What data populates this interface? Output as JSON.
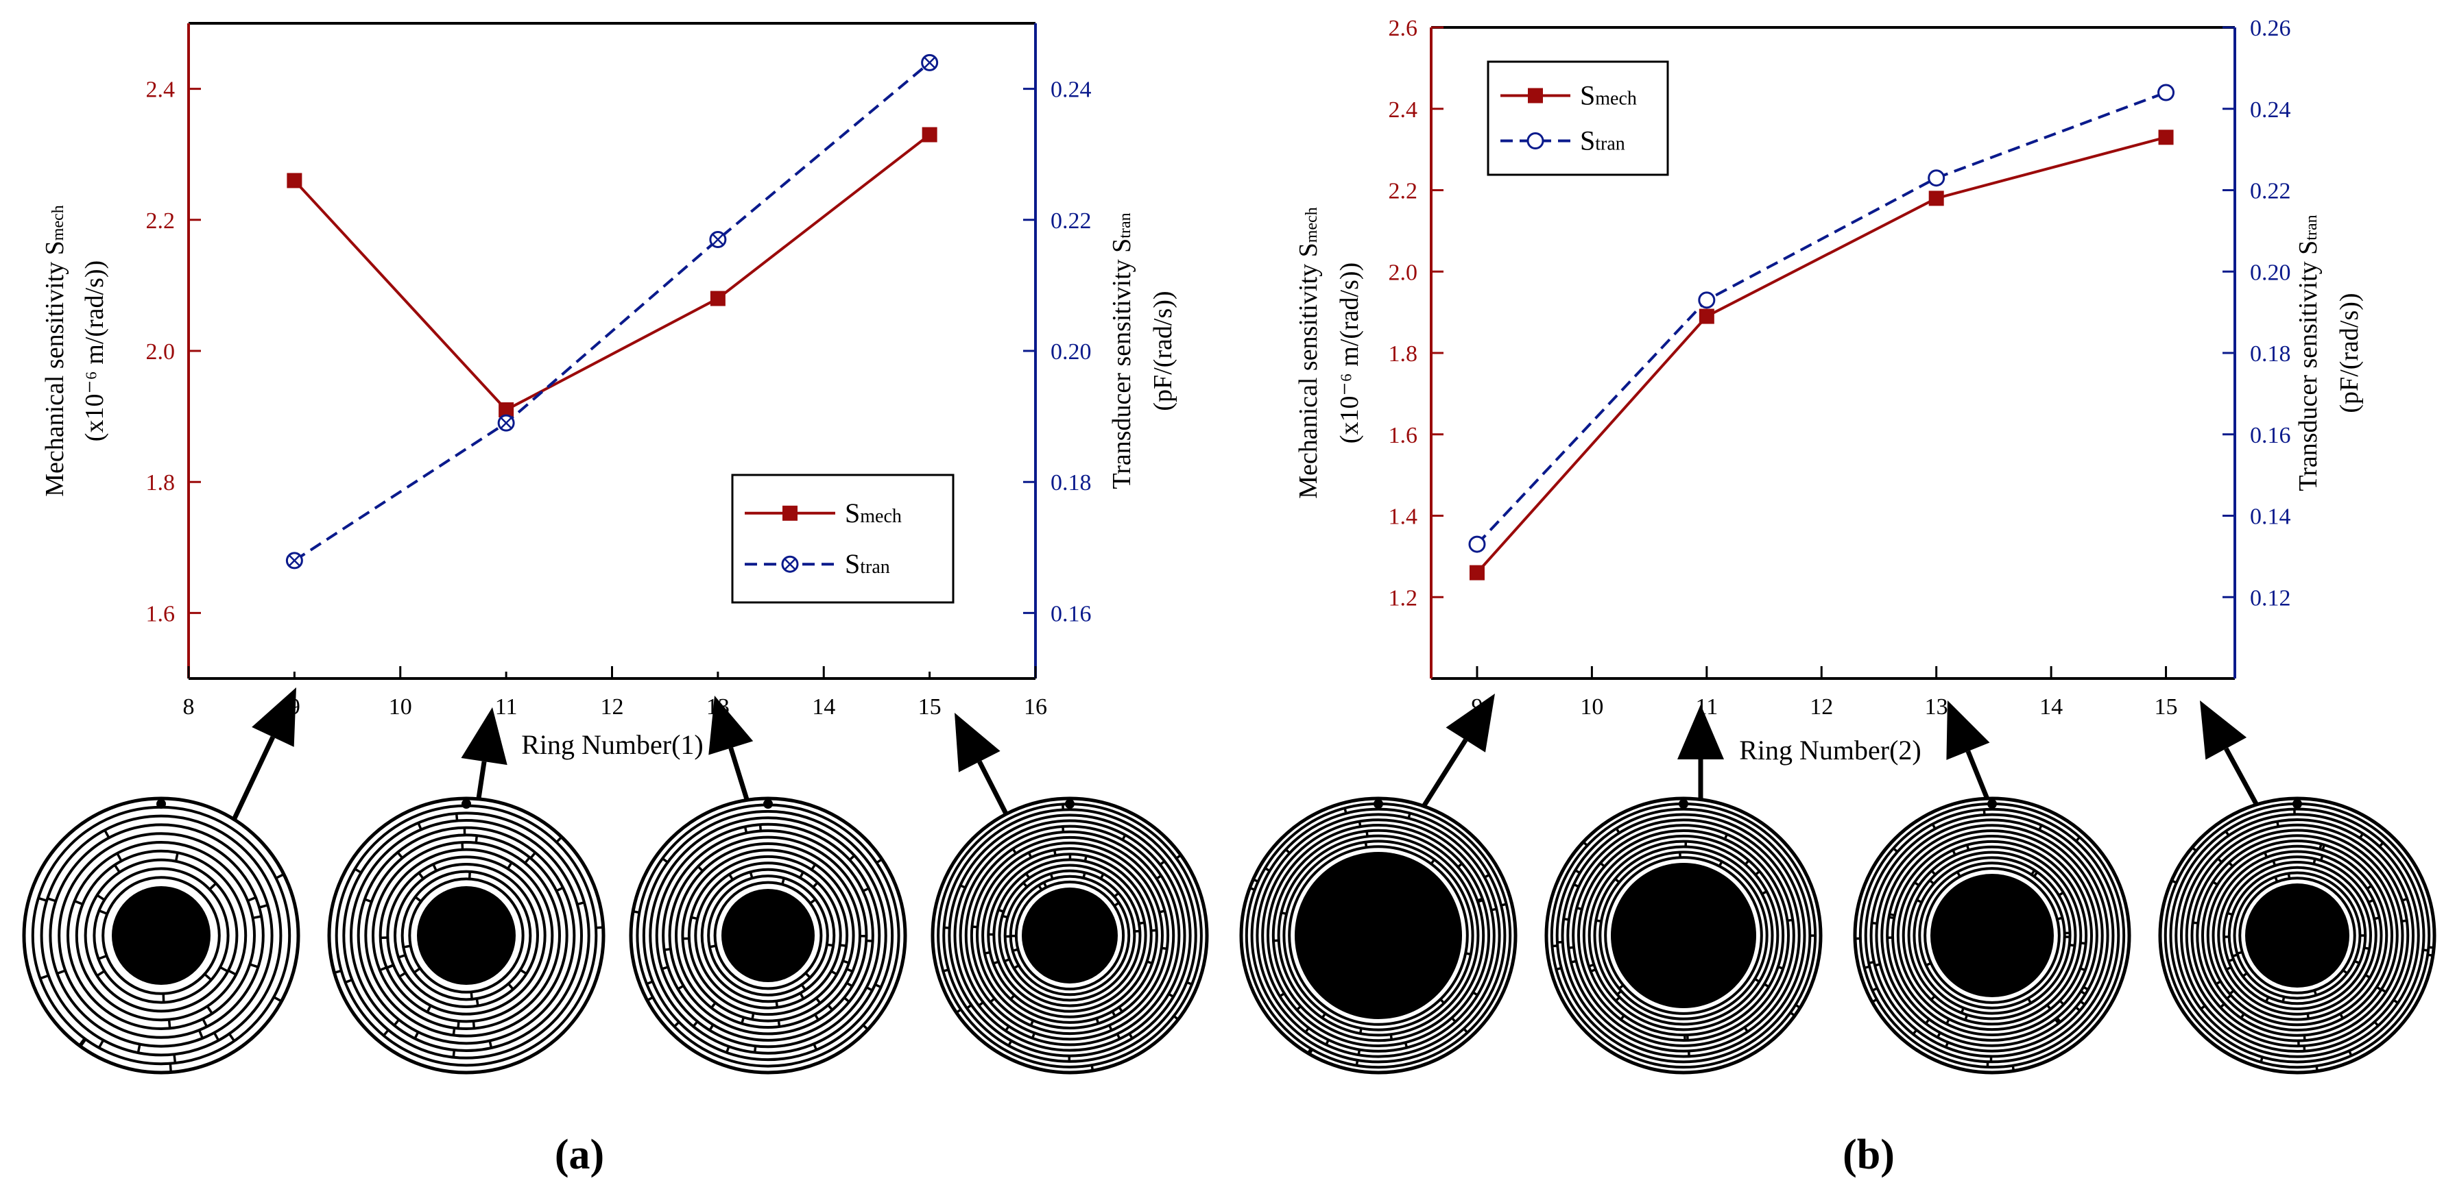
{
  "panels": [
    {
      "caption": "(a)",
      "layout_seed": 1,
      "ring_counts_shown": [
        9,
        11,
        13,
        15
      ]
    },
    {
      "caption": "(b)",
      "layout_seed": 2,
      "ring_counts_shown": [
        9,
        11,
        13,
        15
      ]
    }
  ],
  "colors": {
    "mech": "#9b0a0a",
    "tran": "#0a1a8c",
    "axis_left": "#9b0a0a",
    "axis_right": "#0a1a8c",
    "frame": "#000000"
  },
  "chart_data": [
    {
      "type": "line",
      "xlabel": "Ring Number(1)",
      "ylabel_left_line1": "Mechanical sensitivity S",
      "ylabel_left_sub": "mech",
      "ylabel_left_line2": "(x10⁻⁶ m/(rad/s))",
      "ylabel_right_line1": "Transducer sensitivity S",
      "ylabel_right_sub": "tran",
      "ylabel_right_line2": "(pF/(rad/s))",
      "xlim": [
        8,
        16
      ],
      "xticks": [
        "8",
        "10",
        "12",
        "14",
        "16"
      ],
      "xticks_minor": [
        "9",
        "11",
        "13",
        "15"
      ],
      "ylim_left": [
        1.5,
        2.5
      ],
      "yticks_left": [
        "1.6",
        "1.8",
        "2.0",
        "2.2",
        "2.4"
      ],
      "ylim_right": [
        0.15,
        0.25
      ],
      "yticks_right": [
        "0.16",
        "0.18",
        "0.20",
        "0.22",
        "0.24"
      ],
      "legend_placement": "bottom-right",
      "series": [
        {
          "name": "S",
          "sub": "mech",
          "axis": "left",
          "marker": "square",
          "style": "solid",
          "x": [
            9,
            11,
            13,
            15
          ],
          "y": [
            2.26,
            1.91,
            2.08,
            2.33
          ]
        },
        {
          "name": "S",
          "sub": "tran",
          "axis": "right",
          "marker": "crossed-circle",
          "style": "dashed",
          "x": [
            9,
            11,
            13,
            15
          ],
          "y": [
            0.168,
            0.189,
            0.217,
            0.244
          ]
        }
      ]
    },
    {
      "type": "line",
      "xlabel": "Ring Number(2)",
      "ylabel_left_line1": "Mechanical sensitivity S",
      "ylabel_left_sub": "mech",
      "ylabel_left_line2": "(x10⁻⁶ m/(rad/s))",
      "ylabel_right_line1": "Transducer sensitivity S",
      "ylabel_right_sub": "tran",
      "ylabel_right_line2": "(pF/(rad/s))",
      "xlim": [
        8.6,
        15.6
      ],
      "xticks": [
        "9",
        "10",
        "11",
        "12",
        "13",
        "14",
        "15"
      ],
      "xticks_minor": [],
      "ylim_left": [
        1.0,
        2.6
      ],
      "yticks_left": [
        "1.2",
        "1.4",
        "1.6",
        "1.8",
        "2.0",
        "2.2",
        "2.4",
        "2.6"
      ],
      "ylim_right": [
        0.1,
        0.26
      ],
      "yticks_right": [
        "0.12",
        "0.14",
        "0.16",
        "0.18",
        "0.20",
        "0.22",
        "0.24",
        "0.26"
      ],
      "legend_placement": "top-left",
      "series": [
        {
          "name": "S",
          "sub": "mech",
          "axis": "left",
          "marker": "square",
          "style": "solid",
          "x": [
            9,
            11,
            13,
            15
          ],
          "y": [
            1.26,
            1.89,
            2.18,
            2.33
          ]
        },
        {
          "name": "S",
          "sub": "tran",
          "axis": "right",
          "marker": "open-circle",
          "style": "dashed",
          "x": [
            9,
            11,
            13,
            15
          ],
          "y": [
            0.133,
            0.193,
            0.223,
            0.244
          ]
        }
      ]
    }
  ]
}
